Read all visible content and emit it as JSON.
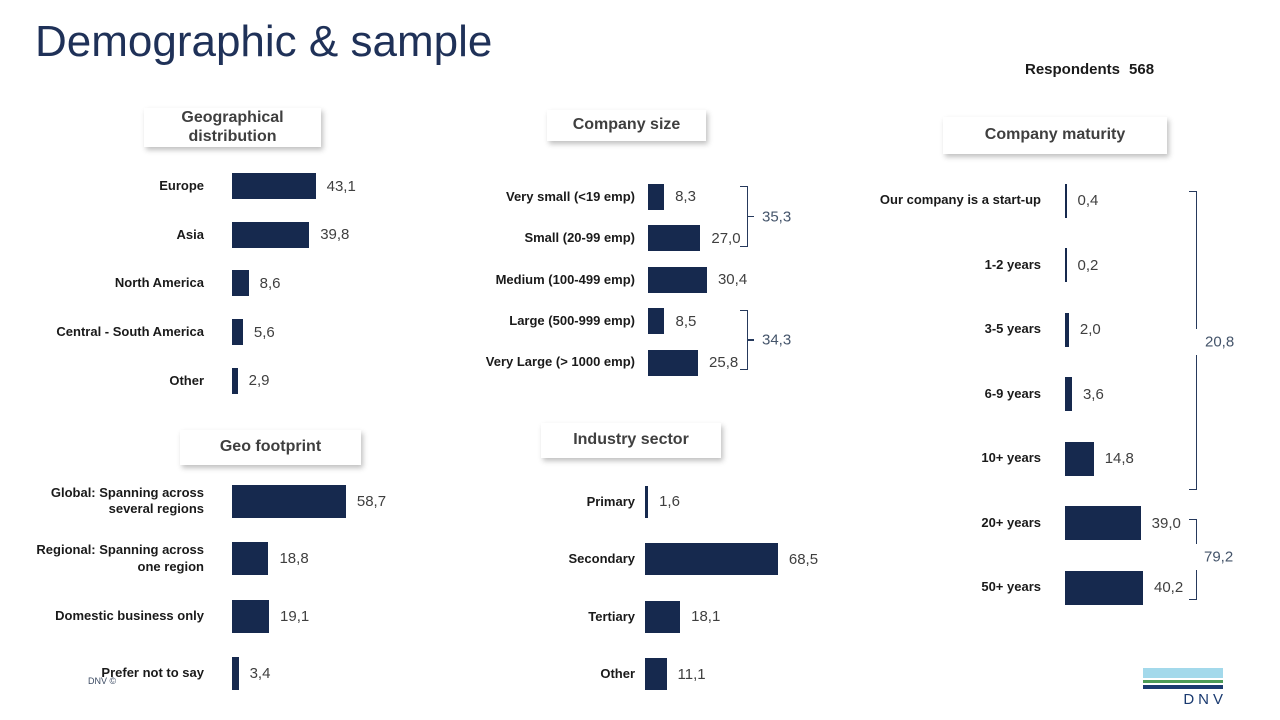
{
  "slide": {
    "title": "Demographic & sample",
    "respondents_label": "Respondents",
    "respondents_value": "568",
    "footer": "DNV ©",
    "logo_text": "DNV"
  },
  "colors": {
    "bar": "#16294E",
    "title_text": "#1F3158",
    "header_text": "#3F3F3F",
    "cat_text": "#1A1A1A",
    "val_text": "#3F3F3F",
    "bracket_line": "#26395C",
    "bracket_text": "#44546A",
    "logo_sky": "#A3D9EB",
    "logo_green": "#4C9B57",
    "logo_navy": "#1A3A70",
    "footer_text": "#3C4B63"
  },
  "chart_data": [
    {
      "type": "bar",
      "orientation": "horizontal",
      "title": "Geographical distribution",
      "categories": [
        "Europe",
        "Asia",
        "North America",
        "Central - South America",
        "Other"
      ],
      "values": [
        43.1,
        39.8,
        8.6,
        5.6,
        2.9
      ],
      "value_labels": [
        "43,1",
        "39,8",
        "8,6",
        "5,6",
        "2,9"
      ],
      "brackets": []
    },
    {
      "type": "bar",
      "orientation": "horizontal",
      "title": "Company size",
      "categories": [
        "Very small (<19 emp)",
        "Small (20-99 emp)",
        "Medium (100-499 emp)",
        "Large (500-999 emp)",
        "Very Large (> 1000 emp)"
      ],
      "values": [
        8.3,
        27.0,
        30.4,
        8.5,
        25.8
      ],
      "value_labels": [
        "8,3",
        "27,0",
        "30,4",
        "8,5",
        "25,8"
      ],
      "brackets": [
        {
          "from": 0,
          "to": 1,
          "value": 35.3,
          "label": "35,3"
        },
        {
          "from": 3,
          "to": 4,
          "value": 34.3,
          "label": "34,3"
        }
      ]
    },
    {
      "type": "bar",
      "orientation": "horizontal",
      "title": "Company maturity",
      "categories": [
        "Our company is a start-up",
        "1-2 years",
        "3-5 years",
        "6-9 years",
        "10+ years",
        "20+ years",
        "50+ years"
      ],
      "values": [
        0.4,
        0.2,
        2.0,
        3.6,
        14.8,
        39.0,
        40.2
      ],
      "value_labels": [
        "0,4",
        "0,2",
        "2,0",
        "3,6",
        "14,8",
        "39,0",
        "40,2"
      ],
      "brackets": [
        {
          "from": 0,
          "to": 4,
          "value": 20.8,
          "label": "20,8"
        },
        {
          "from": 5,
          "to": 6,
          "value": 79.2,
          "label": "79,2"
        }
      ]
    },
    {
      "type": "bar",
      "orientation": "horizontal",
      "title": "Geo footprint",
      "categories": [
        "Global: Spanning across several regions",
        "Regional: Spanning across one region",
        "Domestic business only",
        "Prefer not to say"
      ],
      "values": [
        58.7,
        18.8,
        19.1,
        3.4
      ],
      "value_labels": [
        "58,7",
        "18,8",
        "19,1",
        "3,4"
      ],
      "brackets": []
    },
    {
      "type": "bar",
      "orientation": "horizontal",
      "title": "Industry sector",
      "categories": [
        "Primary",
        "Secondary",
        "Tertiary",
        "Other"
      ],
      "values": [
        1.6,
        68.5,
        18.1,
        11.1
      ],
      "value_labels": [
        "1,6",
        "68,5",
        "18,1",
        "11,1"
      ],
      "brackets": []
    }
  ]
}
